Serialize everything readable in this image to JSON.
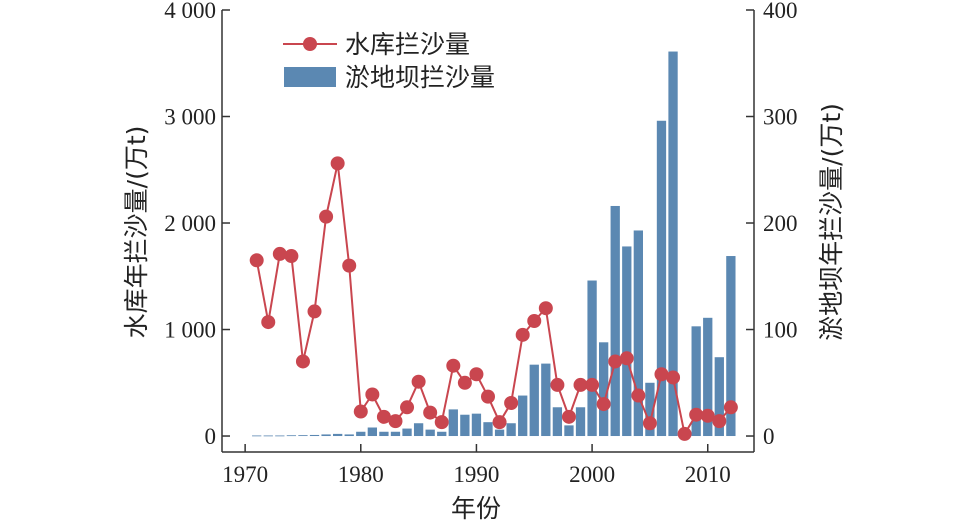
{
  "chart_data": {
    "type": "bar+line",
    "x": [
      1971,
      1972,
      1973,
      1974,
      1975,
      1976,
      1977,
      1978,
      1979,
      1980,
      1981,
      1982,
      1983,
      1984,
      1985,
      1986,
      1987,
      1988,
      1989,
      1990,
      1991,
      1992,
      1993,
      1994,
      1995,
      1996,
      1997,
      1998,
      1999,
      2000,
      2001,
      2002,
      2003,
      2004,
      2005,
      2006,
      2007,
      2008,
      2009,
      2010,
      2011,
      2012
    ],
    "series": [
      {
        "name": "水库拦沙量",
        "kind": "line",
        "axis": "left",
        "color": "#c9464f",
        "values": [
          1650,
          1070,
          1710,
          1690,
          700,
          1170,
          2060,
          2560,
          1600,
          230,
          390,
          180,
          140,
          270,
          510,
          220,
          130,
          660,
          500,
          580,
          370,
          130,
          310,
          950,
          1080,
          1200,
          480,
          180,
          480,
          480,
          300,
          700,
          730,
          380,
          120,
          580,
          550,
          20,
          200,
          190,
          140,
          270
        ]
      },
      {
        "name": "淤地坝拦沙量",
        "kind": "bar",
        "axis": "right",
        "color": "#5b88b2",
        "values": [
          0.5,
          0.5,
          0.5,
          0.7,
          0.8,
          1,
          1.5,
          2,
          1.5,
          4,
          8,
          4,
          4,
          7,
          12,
          6,
          4,
          25,
          20,
          21,
          13,
          6,
          12,
          38,
          67,
          68,
          27,
          10,
          27,
          146,
          88,
          216,
          178,
          193,
          50,
          296,
          361,
          0,
          103,
          111,
          74,
          169
        ]
      }
    ],
    "title": "",
    "xlabel": "年份",
    "ylabel_left": "水库年拦沙量/(万t)",
    "ylabel_right": "淤地坝年拦沙量/(万t)",
    "xlim": [
      1968,
      2014
    ],
    "ylim_left": [
      -150,
      4000
    ],
    "ylim_right": [
      -15,
      400
    ],
    "x_ticks": [
      1970,
      1980,
      1990,
      2000,
      2010
    ],
    "x_tick_labels": [
      "1970",
      "1980",
      "1990",
      "2000",
      "2010"
    ],
    "y_left_ticks": [
      0,
      1000,
      2000,
      3000,
      4000
    ],
    "y_left_tick_labels": [
      "0",
      "1 000",
      "2 000",
      "3 000",
      "4 000"
    ],
    "y_right_ticks": [
      0,
      100,
      200,
      300,
      400
    ],
    "y_right_tick_labels": [
      "0",
      "100",
      "200",
      "300",
      "400"
    ],
    "legend": {
      "position": "top-left",
      "entries": [
        "水库拦沙量",
        "淤地坝拦沙量"
      ]
    },
    "grid": false
  }
}
